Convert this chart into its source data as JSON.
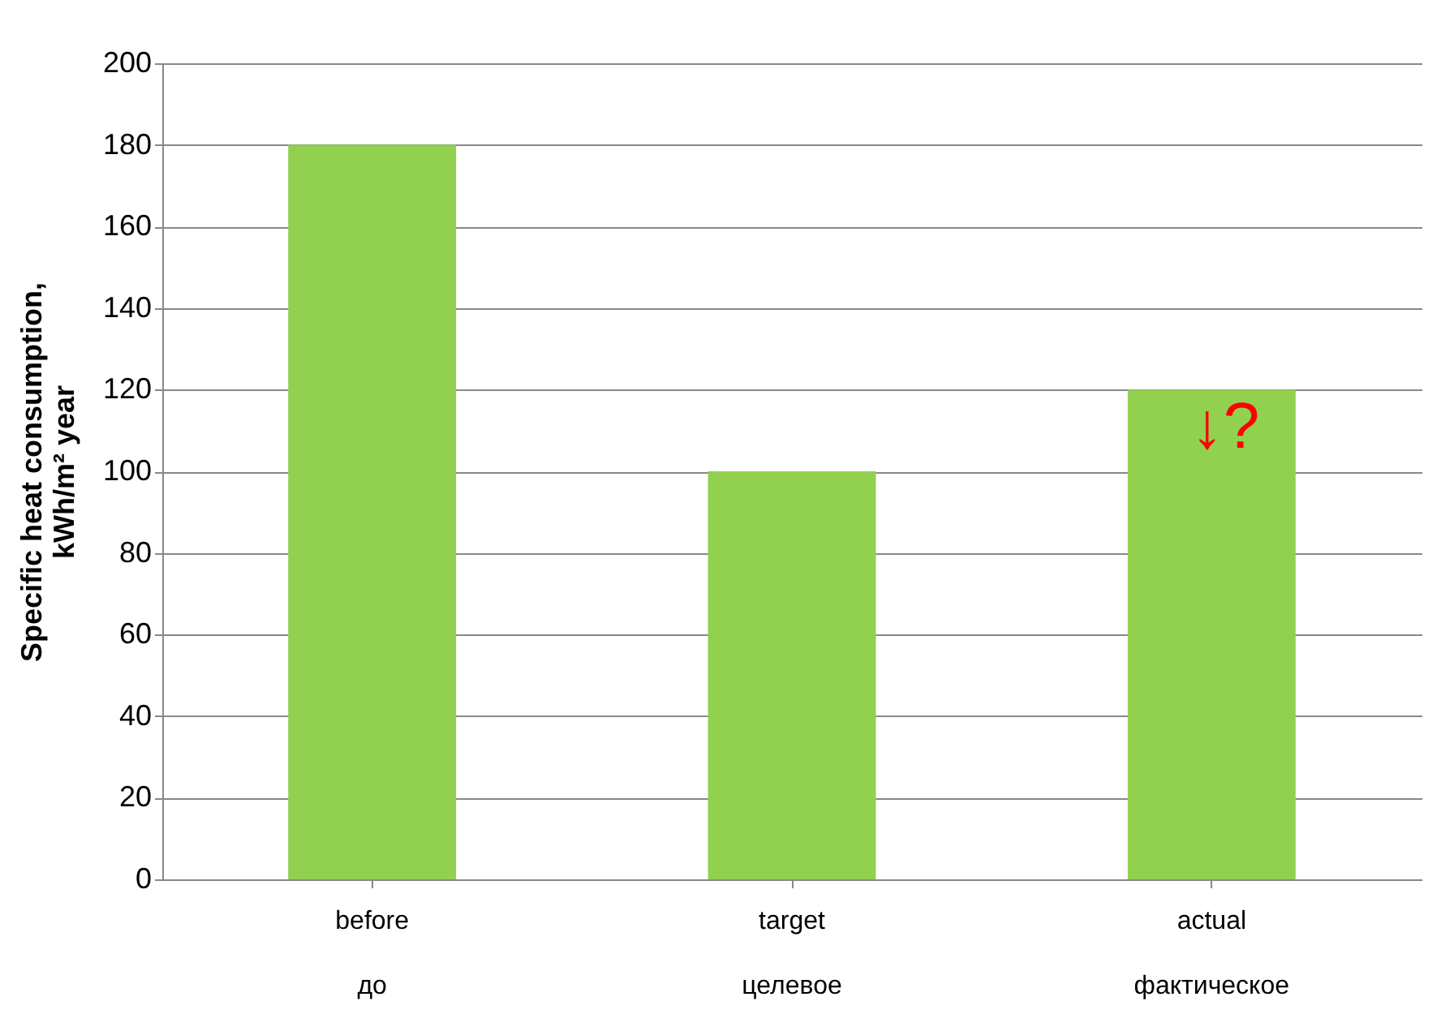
{
  "chart_data": {
    "type": "bar",
    "ylabel": "Specific heat consumption,\nkWh/m² year",
    "categories": [
      "before\nдо",
      "target\nцелевое",
      "actual\nфактическое"
    ],
    "values": [
      180,
      100,
      120
    ],
    "color": "#92d050",
    "ylim": [
      0,
      200
    ],
    "yticks": [
      0,
      20,
      40,
      60,
      80,
      100,
      120,
      140,
      160,
      180,
      200
    ],
    "grid": "y",
    "annotations": [
      "↓?"
    ]
  }
}
